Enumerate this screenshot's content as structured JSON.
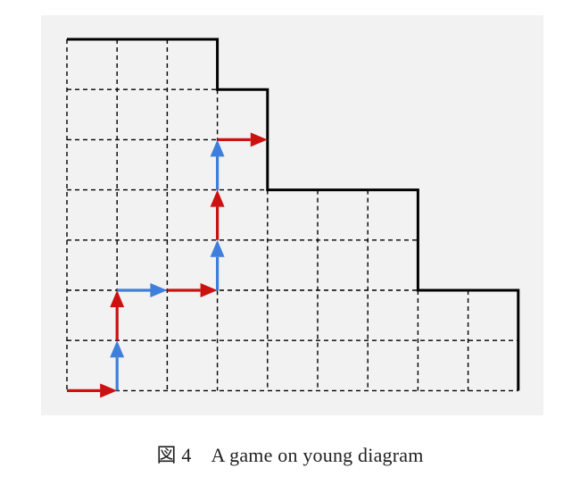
{
  "caption": {
    "figure_label": "図 4",
    "text": "A game on young diagram"
  },
  "diagram": {
    "row_lengths_top_to_bottom": [
      3,
      4,
      4,
      7,
      7,
      9,
      9
    ],
    "colors": {
      "panel_background": "#f2f2f2",
      "grid_line": "#000000",
      "boundary": "#000000",
      "red_arrow": "#cc1111",
      "blue_arrow": "#3f7fdc"
    },
    "path_moves": [
      {
        "from": [
          0,
          0
        ],
        "to": [
          1,
          0
        ],
        "color": "red"
      },
      {
        "from": [
          1,
          0
        ],
        "to": [
          1,
          1
        ],
        "color": "blue"
      },
      {
        "from": [
          1,
          1
        ],
        "to": [
          1,
          2
        ],
        "color": "red"
      },
      {
        "from": [
          1,
          2
        ],
        "to": [
          2,
          2
        ],
        "color": "blue"
      },
      {
        "from": [
          2,
          2
        ],
        "to": [
          3,
          2
        ],
        "color": "red"
      },
      {
        "from": [
          3,
          2
        ],
        "to": [
          3,
          3
        ],
        "color": "blue"
      },
      {
        "from": [
          3,
          3
        ],
        "to": [
          3,
          4
        ],
        "color": "red"
      },
      {
        "from": [
          3,
          4
        ],
        "to": [
          3,
          5
        ],
        "color": "blue"
      },
      {
        "from": [
          3,
          5
        ],
        "to": [
          4,
          5
        ],
        "color": "red"
      }
    ]
  }
}
